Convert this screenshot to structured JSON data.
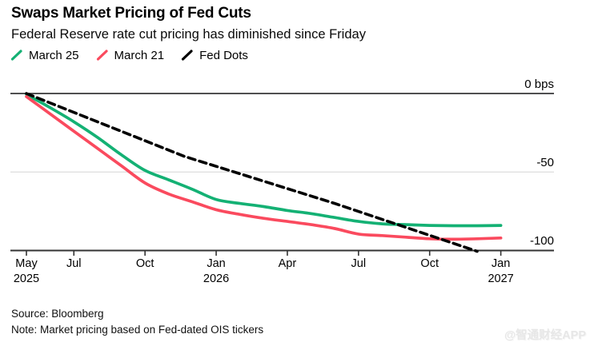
{
  "chart_data": {
    "type": "line",
    "title": "Swaps Market Pricing of Fed Cuts",
    "subtitle": "Federal Reserve rate cut pricing has diminished since Friday",
    "ylabel": "bps",
    "ylim": [
      -105,
      0
    ],
    "grid": "horizontal",
    "legend_position": "top-left",
    "x_axis": {
      "ticks": [
        {
          "label": "May",
          "sublabel": "2025",
          "month": 0
        },
        {
          "label": "Jul",
          "month": 2
        },
        {
          "label": "Oct",
          "month": 5
        },
        {
          "label": "Jan",
          "sublabel": "2026",
          "month": 8
        },
        {
          "label": "Apr",
          "month": 11
        },
        {
          "label": "Jul",
          "month": 14
        },
        {
          "label": "Oct",
          "month": 17
        },
        {
          "label": "Jan",
          "sublabel": "2027",
          "month": 20
        }
      ]
    },
    "y_axis": {
      "unit": "bps",
      "ticks": [
        {
          "label": "0 bps",
          "value": 0
        },
        {
          "label": "-50",
          "value": -50
        },
        {
          "label": "-100",
          "value": -100
        }
      ]
    },
    "series": [
      {
        "name": "March 25",
        "color": "#14b174",
        "style": "solid",
        "x_months": [
          0,
          1,
          2,
          3,
          4,
          5,
          6,
          7,
          8,
          9,
          10,
          11,
          12,
          13,
          14,
          15,
          16,
          17,
          18,
          19,
          20
        ],
        "values_bps": [
          -0.5,
          -9,
          -18,
          -28,
          -39,
          -49,
          -55,
          -61,
          -67.5,
          -70,
          -72,
          -74.5,
          -76.5,
          -79,
          -81.5,
          -83,
          -83.5,
          -84,
          -84.2,
          -84.2,
          -84
        ]
      },
      {
        "name": "March 21",
        "color": "#fa4a5e",
        "style": "solid",
        "x_months": [
          0,
          1,
          2,
          3,
          4,
          5,
          6,
          7,
          8,
          9,
          10,
          11,
          12,
          13,
          14,
          15,
          16,
          17,
          18,
          19,
          20
        ],
        "values_bps": [
          -2,
          -13,
          -24,
          -35,
          -46,
          -57,
          -64,
          -69,
          -74,
          -77,
          -79.5,
          -81.5,
          -83.5,
          -86,
          -89.5,
          -90.5,
          -91.5,
          -92.5,
          -92.8,
          -92.5,
          -92
        ]
      },
      {
        "name": "Fed Dots",
        "color": "#000000",
        "style": "dashed",
        "x_months": [
          0,
          6.65,
          13,
          19
        ],
        "values_bps": [
          0,
          -40,
          -70,
          -100.5
        ]
      }
    ]
  },
  "footer": {
    "source": "Source: Bloomberg",
    "note": "Note: Market pricing based on Fed-dated OIS tickers",
    "watermark": "@智通财经APP"
  }
}
